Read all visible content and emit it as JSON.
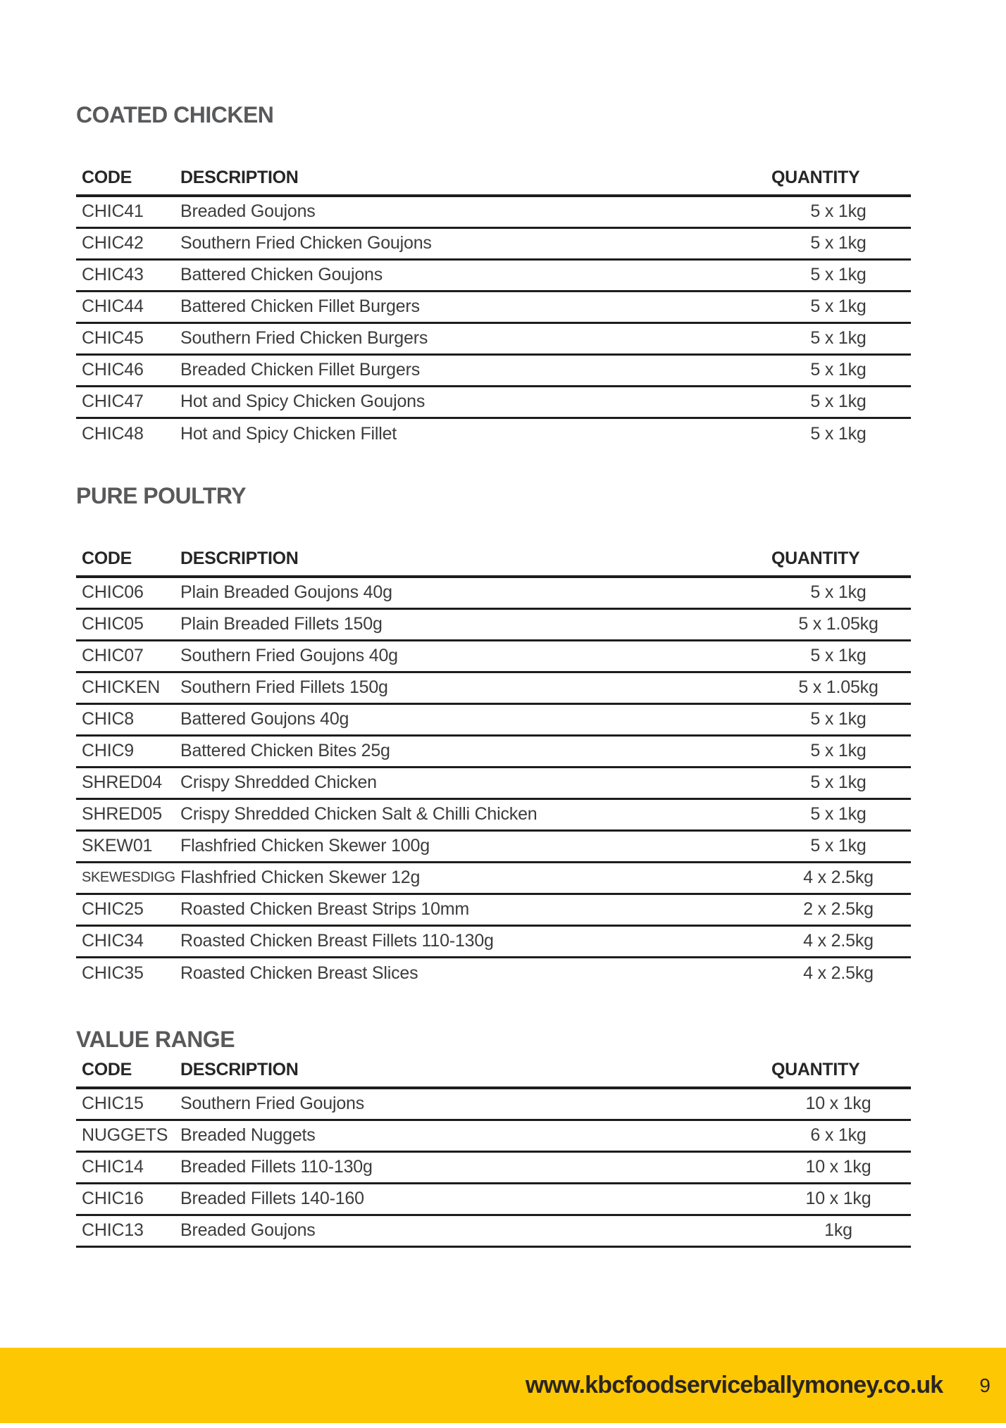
{
  "page": {
    "number": "9",
    "website": "www.kbcfoodserviceballymoney.co.uk"
  },
  "colors": {
    "accent_yellow": "#fdc704",
    "heading_gray": "#58595b",
    "body_text": "#3c3c3e",
    "border_dark": "#1d1d1b"
  },
  "sections": [
    {
      "title": "COATED CHICKEN",
      "headers": [
        "CODE",
        "DESCRIPTION",
        "QUANTITY"
      ],
      "rows": [
        {
          "code": "CHIC41",
          "description": "Breaded Goujons",
          "quantity": "5 x 1kg"
        },
        {
          "code": "CHIC42",
          "description": "Southern Fried Chicken Goujons",
          "quantity": "5 x 1kg"
        },
        {
          "code": "CHIC43",
          "description": "Battered Chicken Goujons",
          "quantity": "5 x 1kg"
        },
        {
          "code": "CHIC44",
          "description": "Battered Chicken Fillet Burgers",
          "quantity": "5 x 1kg"
        },
        {
          "code": "CHIC45",
          "description": "Southern Fried Chicken Burgers",
          "quantity": "5 x 1kg"
        },
        {
          "code": "CHIC46",
          "description": "Breaded Chicken Fillet Burgers",
          "quantity": "5 x 1kg"
        },
        {
          "code": "CHIC47",
          "description": "Hot and Spicy Chicken Goujons",
          "quantity": "5 x 1kg"
        },
        {
          "code": "CHIC48",
          "description": "Hot and Spicy Chicken Fillet",
          "quantity": "5 x 1kg"
        }
      ]
    },
    {
      "title": "PURE POULTRY",
      "headers": [
        "CODE",
        "DESCRIPTION",
        "QUANTITY"
      ],
      "rows": [
        {
          "code": "CHIC06",
          "description": "Plain Breaded Goujons 40g",
          "quantity": "5 x 1kg"
        },
        {
          "code": "CHIC05",
          "description": "Plain Breaded Fillets 150g",
          "quantity": "5 x 1.05kg"
        },
        {
          "code": "CHIC07",
          "description": "Southern Fried Goujons 40g",
          "quantity": "5 x 1kg"
        },
        {
          "code": "CHICKEN",
          "description": "Southern Fried Fillets 150g",
          "quantity": "5 x 1.05kg"
        },
        {
          "code": "CHIC8",
          "description": "Battered Goujons 40g",
          "quantity": "5 x 1kg"
        },
        {
          "code": "CHIC9",
          "description": "Battered Chicken Bites 25g",
          "quantity": "5 x 1kg"
        },
        {
          "code": "SHRED04",
          "description": "Crispy Shredded Chicken",
          "quantity": "5 x 1kg"
        },
        {
          "code": "SHRED05",
          "description": "Crispy Shredded Chicken Salt & Chilli Chicken",
          "quantity": "5 x 1kg"
        },
        {
          "code": "SKEW01",
          "description": "Flashfried Chicken Skewer 100g",
          "quantity": "5 x 1kg"
        },
        {
          "code": "SKEWESDIGG",
          "description": "Flashfried Chicken Skewer 12g",
          "quantity": "4 x 2.5kg"
        },
        {
          "code": "CHIC25",
          "description": "Roasted Chicken Breast Strips 10mm",
          "quantity": "2 x 2.5kg"
        },
        {
          "code": "CHIC34",
          "description": "Roasted Chicken Breast Fillets 110-130g",
          "quantity": "4 x 2.5kg"
        },
        {
          "code": "CHIC35",
          "description": "Roasted Chicken Breast Slices",
          "quantity": "4 x 2.5kg"
        }
      ]
    },
    {
      "title": "VALUE RANGE",
      "headers": [
        "CODE",
        "DESCRIPTION",
        "QUANTITY"
      ],
      "rows": [
        {
          "code": "CHIC15",
          "description": "Southern Fried Goujons",
          "quantity": "10 x 1kg"
        },
        {
          "code": "NUGGETS",
          "description": "Breaded Nuggets",
          "quantity": "6 x 1kg"
        },
        {
          "code": "CHIC14",
          "description": "Breaded Fillets 110-130g",
          "quantity": "10 x 1kg"
        },
        {
          "code": "CHIC16",
          "description": "Breaded Fillets 140-160",
          "quantity": "10 x 1kg"
        },
        {
          "code": "CHIC13",
          "description": "Breaded Goujons",
          "quantity": "1kg"
        }
      ]
    }
  ]
}
